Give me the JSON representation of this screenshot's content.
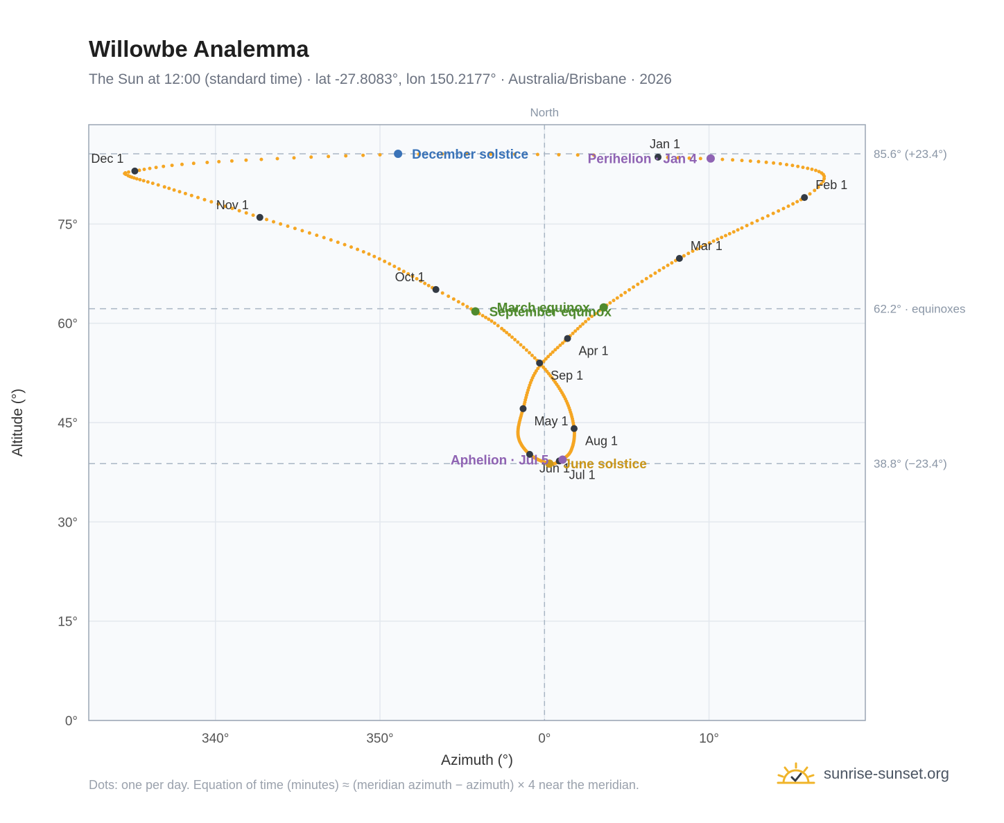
{
  "title": "Willowbe Analemma",
  "subtitle": "The Sun at 12:00 (standard time) · lat -27.8083°, lon 150.2177° · Australia/Brisbane · 2026",
  "footnote": "Dots: one per day. Equation of time (minutes) ≈ (meridian azimuth − azimuth) × 4 near the meridian.",
  "brand": "sunrise-sunset.org",
  "colors": {
    "path": "#f5a623",
    "month_dot": "#333a44",
    "december_solstice": "#3a73b8",
    "june_solstice": "#c9961a",
    "equinox": "#4f8a2e",
    "aphelion_perihelion": "#8f63b3",
    "guide_line": "#a9b6c4",
    "plot_bg": "#f8fafc",
    "brand_sun": "#f0b429"
  },
  "chart_data": {
    "type": "scatter",
    "xlabel": "Azimuth (°)",
    "ylabel": "Altitude (°)",
    "xlim": [
      332.3,
      19.5
    ],
    "ylim": [
      0,
      90
    ],
    "x_ticks": [
      {
        "value": 340,
        "label": "340°"
      },
      {
        "value": 350,
        "label": "350°"
      },
      {
        "value": 0,
        "label": "0°"
      },
      {
        "value": 10,
        "label": "10°"
      }
    ],
    "y_ticks": [
      {
        "value": 0,
        "label": "0°"
      },
      {
        "value": 15,
        "label": "15°"
      },
      {
        "value": 30,
        "label": "30°"
      },
      {
        "value": 45,
        "label": "45°"
      },
      {
        "value": 60,
        "label": "60°"
      },
      {
        "value": 75,
        "label": "75°"
      }
    ],
    "grid": true,
    "meridian": {
      "azimuth": 0,
      "label": "North"
    },
    "reference_lines": [
      {
        "altitude": 85.6,
        "label": "85.6° (+23.4°)"
      },
      {
        "altitude": 62.2,
        "label": "62.2° · equinoxes"
      },
      {
        "altitude": 38.8,
        "label": "38.8° (−23.4°)"
      }
    ],
    "daily_path_anchors": [
      {
        "day": 1,
        "az": 6.9,
        "alt": 85.1
      },
      {
        "day": 9,
        "az": 12.0,
        "alt": 84.6
      },
      {
        "day": 17,
        "az": 15.4,
        "alt": 83.7
      },
      {
        "day": 25,
        "az": 17.0,
        "alt": 82.2
      },
      {
        "day": 32,
        "az": 15.8,
        "alt": 79.0
      },
      {
        "day": 45,
        "az": 12.0,
        "alt": 74.4
      },
      {
        "day": 60,
        "az": 8.2,
        "alt": 69.8
      },
      {
        "day": 79,
        "az": 3.6,
        "alt": 62.4
      },
      {
        "day": 91,
        "az": 1.4,
        "alt": 57.7
      },
      {
        "day": 105,
        "az": -0.5,
        "alt": 52.8
      },
      {
        "day": 121,
        "az": -1.3,
        "alt": 47.1
      },
      {
        "day": 137,
        "az": -1.6,
        "alt": 43.0
      },
      {
        "day": 152,
        "az": -0.9,
        "alt": 40.2
      },
      {
        "day": 172,
        "az": 0.3,
        "alt": 38.8
      },
      {
        "day": 182,
        "az": 0.9,
        "alt": 39.2
      },
      {
        "day": 197,
        "az": 1.6,
        "alt": 40.7
      },
      {
        "day": 213,
        "az": 1.8,
        "alt": 44.1
      },
      {
        "day": 228,
        "az": 1.2,
        "alt": 48.9
      },
      {
        "day": 244,
        "az": -0.3,
        "alt": 54.0
      },
      {
        "day": 258,
        "az": -2.6,
        "alt": 59.2
      },
      {
        "day": 266,
        "az": -4.2,
        "alt": 61.8
      },
      {
        "day": 274,
        "az": -6.6,
        "alt": 65.1
      },
      {
        "day": 290,
        "az": -11.0,
        "alt": 70.8
      },
      {
        "day": 305,
        "az": -17.3,
        "alt": 76.0
      },
      {
        "day": 320,
        "az": -23.1,
        "alt": 80.6
      },
      {
        "day": 330,
        "az": -25.3,
        "alt": 82.3
      },
      {
        "day": 335,
        "az": -24.9,
        "alt": 83.0
      },
      {
        "day": 344,
        "az": -20.5,
        "alt": 84.3
      },
      {
        "day": 356,
        "az": -9.0,
        "alt": 85.5
      },
      {
        "day": 365,
        "az": 3.0,
        "alt": 85.4
      }
    ],
    "month_markers": [
      {
        "label": "Jan 1",
        "az": 6.9,
        "alt": 85.1,
        "pos": "above"
      },
      {
        "label": "Feb 1",
        "az": 15.8,
        "alt": 79.0,
        "pos": "upper-right"
      },
      {
        "label": "Mar 1",
        "az": 8.2,
        "alt": 69.8,
        "pos": "upper-right"
      },
      {
        "label": "Apr 1",
        "az": 1.4,
        "alt": 57.7,
        "pos": "lower-right"
      },
      {
        "label": "May 1",
        "az": -1.3,
        "alt": 47.1,
        "pos": "lower-right"
      },
      {
        "label": "Jun 1",
        "az": -0.9,
        "alt": 40.2,
        "pos": "below-right"
      },
      {
        "label": "Jul 1",
        "az": 0.9,
        "alt": 39.2,
        "pos": "below-right"
      },
      {
        "label": "Aug 1",
        "az": 1.8,
        "alt": 44.1,
        "pos": "lower-right"
      },
      {
        "label": "Sep 1",
        "az": -0.3,
        "alt": 54.0,
        "pos": "lower-right"
      },
      {
        "label": "Oct 1",
        "az": -6.6,
        "alt": 65.1,
        "pos": "upper-left"
      },
      {
        "label": "Nov 1",
        "az": -17.3,
        "alt": 76.0,
        "pos": "upper-left"
      },
      {
        "label": "Dec 1",
        "az": -24.9,
        "alt": 83.0,
        "pos": "upper-left"
      }
    ],
    "events": [
      {
        "label": "December solstice",
        "az": -8.9,
        "alt": 85.6,
        "color": "december_solstice",
        "anchor": "right"
      },
      {
        "label": "Perihelion · Jan 4",
        "az": 10.1,
        "alt": 84.9,
        "color": "aphelion_perihelion",
        "anchor": "left"
      },
      {
        "label": "March equinox",
        "az": 3.6,
        "alt": 62.4,
        "color": "equinox",
        "anchor": "left"
      },
      {
        "label": "September equinox",
        "az": -4.2,
        "alt": 61.8,
        "color": "equinox",
        "anchor": "right"
      },
      {
        "label": "June solstice",
        "az": 0.3,
        "alt": 38.8,
        "color": "june_solstice",
        "anchor": "right"
      },
      {
        "label": "Aphelion · Jul 5",
        "az": 1.1,
        "alt": 39.4,
        "color": "aphelion_perihelion",
        "anchor": "left"
      }
    ]
  }
}
